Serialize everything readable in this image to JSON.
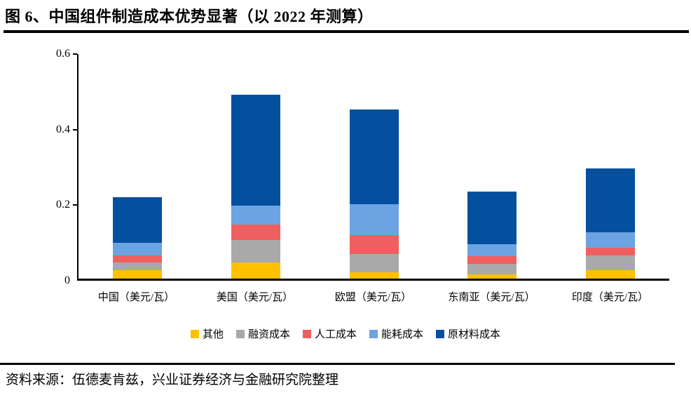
{
  "header": {
    "title": "图 6、中国组件制造成本优势显著（以 2022 年测算）"
  },
  "footer": {
    "source": "资料来源：伍德麦肯兹，兴业证券经济与金融研究院整理"
  },
  "chart_data": {
    "type": "bar",
    "stacked": true,
    "stack_order": "bottom-to-top",
    "unit": "美元/瓦",
    "categories": [
      "中国（美元/瓦）",
      "美国（美元/瓦）",
      "欧盟（美元/瓦）",
      "东南亚（美元/瓦）",
      "印度（美元/瓦）"
    ],
    "series": [
      {
        "name": "其他",
        "color": "#FFC000",
        "values": [
          0.023,
          0.042,
          0.017,
          0.011,
          0.022
        ]
      },
      {
        "name": "融资成本",
        "color": "#A9A9A9",
        "values": [
          0.02,
          0.061,
          0.048,
          0.028,
          0.04
        ]
      },
      {
        "name": "人工成本",
        "color": "#EF5F5F",
        "values": [
          0.019,
          0.04,
          0.05,
          0.02,
          0.019
        ]
      },
      {
        "name": "能耗成本",
        "color": "#6CA3E2",
        "values": [
          0.032,
          0.05,
          0.082,
          0.032,
          0.041
        ]
      },
      {
        "name": "原材料成本",
        "color": "#04509E",
        "values": [
          0.121,
          0.293,
          0.251,
          0.14,
          0.17
        ]
      }
    ],
    "ylim": [
      0,
      0.6
    ],
    "yticks": [
      {
        "label": "0",
        "value": 0.0
      },
      {
        "label": "0.2",
        "value": 0.2
      },
      {
        "label": "0.4",
        "value": 0.4
      },
      {
        "label": "0.6",
        "value": 0.6
      }
    ],
    "grid": false,
    "legend_position": "bottom",
    "axis_color": "#000000"
  }
}
